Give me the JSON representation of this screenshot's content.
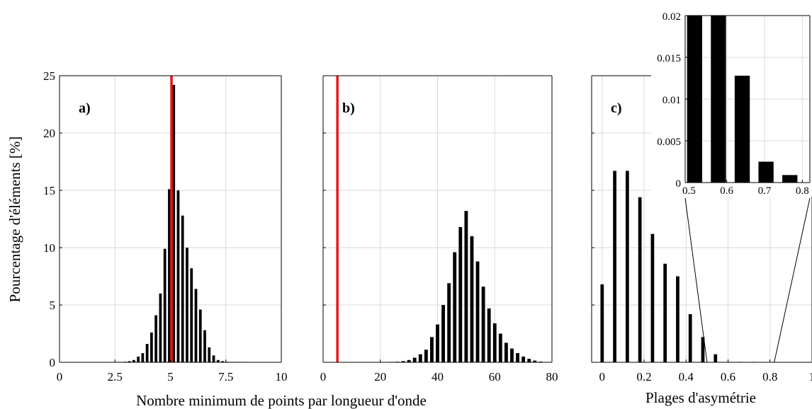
{
  "colors": {
    "bar": "#000000",
    "reference_line": "#e8161b",
    "grid": "#d9d9d9",
    "axis": "#000000"
  },
  "labels": {
    "ylabel": "Pourcentage d'éléments [%]",
    "xlabel_ab": "Nombre minimum de points par longueur d'onde",
    "xlabel_c": "Plages d'asymétrie"
  },
  "chart_data": [
    {
      "id": "a",
      "type": "bar",
      "panel_label": "a)",
      "xlim": [
        0,
        10
      ],
      "ylim": [
        0,
        25
      ],
      "xticks": [
        0,
        2.5,
        5,
        7.5,
        10
      ],
      "xtick_labels": [
        "0",
        "2.5",
        "5",
        "7.5",
        "10"
      ],
      "yticks": [
        0,
        5,
        10,
        15,
        20,
        25
      ],
      "ytick_labels": [
        "0",
        "5",
        "10",
        "15",
        "20",
        "25"
      ],
      "grid": true,
      "bar_width": 0.12,
      "reference_line_x": 5.05,
      "x": [
        2.7,
        2.95,
        3.15,
        3.35,
        3.55,
        3.75,
        3.95,
        4.15,
        4.35,
        4.55,
        4.75,
        4.95,
        5.15,
        5.35,
        5.55,
        5.75,
        5.95,
        6.15,
        6.35,
        6.55,
        6.75,
        6.95,
        7.15,
        7.35,
        7.55,
        7.75,
        7.95,
        8.15,
        8.35
      ],
      "values": [
        0.02,
        0.05,
        0.1,
        0.2,
        0.5,
        0.8,
        1.6,
        2.6,
        4.1,
        6.0,
        9.9,
        15.1,
        24.2,
        15.0,
        12.8,
        10.0,
        8.2,
        6.4,
        4.6,
        2.8,
        1.3,
        0.6,
        0.2,
        0.1,
        0.05,
        0.03,
        0.02,
        0.01,
        0.01
      ]
    },
    {
      "id": "b",
      "type": "bar",
      "panel_label": "b)",
      "xlim": [
        0,
        80
      ],
      "ylim": [
        0,
        25
      ],
      "xticks": [
        0,
        20,
        40,
        60,
        80
      ],
      "xtick_labels": [
        "0",
        "20",
        "40",
        "60",
        "80"
      ],
      "yticks": [
        0,
        5,
        10,
        15,
        20,
        25
      ],
      "ytick_labels": [],
      "grid": true,
      "bar_width": 1.2,
      "reference_line_x": 5,
      "x": [
        24,
        26,
        28,
        30,
        32,
        34,
        36,
        38,
        40,
        42,
        44,
        46,
        48,
        50,
        52,
        54,
        56,
        58,
        60,
        62,
        64,
        66,
        68,
        70,
        72,
        74,
        76
      ],
      "values": [
        0.02,
        0.05,
        0.1,
        0.2,
        0.4,
        0.7,
        1.1,
        2.2,
        3.3,
        5.0,
        6.9,
        9.6,
        11.8,
        13.2,
        11.0,
        8.8,
        6.6,
        4.7,
        3.4,
        2.5,
        1.7,
        1.2,
        0.8,
        0.5,
        0.3,
        0.15,
        0.06
      ]
    },
    {
      "id": "c",
      "type": "bar",
      "panel_label": "c)",
      "xlim": [
        -0.05,
        1
      ],
      "ylim": [
        0,
        25
      ],
      "xticks": [
        0,
        0.2,
        0.4,
        0.6,
        0.8,
        1
      ],
      "xtick_labels": [
        "0",
        "0.2",
        "0.4",
        "0.6",
        "0.8",
        "1"
      ],
      "yticks": [
        0,
        5,
        10,
        15,
        20,
        25
      ],
      "ytick_labels": [],
      "grid": true,
      "bar_width": 0.016,
      "zoom_range_x": [
        0.5,
        0.82
      ],
      "x": [
        0.0,
        0.06,
        0.12,
        0.18,
        0.24,
        0.3,
        0.36,
        0.42,
        0.48,
        0.54,
        0.6,
        0.66,
        0.72
      ],
      "values": [
        6.8,
        16.7,
        16.7,
        14.4,
        11.2,
        8.6,
        7.5,
        4.2,
        2.2,
        0.7,
        0.02,
        0.013,
        0.01
      ],
      "inset": {
        "type": "bar",
        "xlim": [
          0.49,
          0.82
        ],
        "ylim": [
          0,
          0.02
        ],
        "xticks": [
          0.5,
          0.6,
          0.7,
          0.8
        ],
        "xtick_labels": [
          "0.5",
          "0.6",
          "0.7",
          "0.8"
        ],
        "yticks": [
          0,
          0.005,
          0.01,
          0.015,
          0.02
        ],
        "ytick_labels": [
          "0",
          "0.005",
          "0.01",
          "0.015",
          "0.02"
        ],
        "grid": true,
        "bar_width": 0.04,
        "x": [
          0.515,
          0.578,
          0.641,
          0.704,
          0.767
        ],
        "values": [
          0.02,
          0.02,
          0.0128,
          0.0025,
          0.0009
        ]
      }
    }
  ]
}
